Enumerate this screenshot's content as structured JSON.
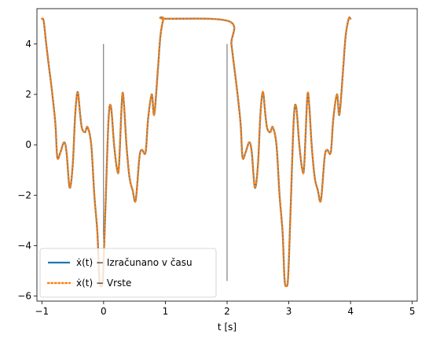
{
  "chart_data": {
    "type": "line",
    "title": "",
    "xlabel": "t [s]",
    "ylabel": "",
    "xlim": [
      -1.08,
      5.08
    ],
    "ylim": [
      -6.2,
      5.4
    ],
    "xticks": [
      -1,
      0,
      1,
      2,
      3,
      4,
      5
    ],
    "yticks": [
      -6,
      -4,
      -2,
      0,
      2,
      4
    ],
    "xtick_labels": [
      "−1",
      "0",
      "1",
      "2",
      "3",
      "4",
      "5"
    ],
    "ytick_labels": [
      "−6",
      "−4",
      "−2",
      "0",
      "2",
      "4"
    ],
    "grid": false,
    "legend_position": "lower-left",
    "vertical_markers": [
      {
        "x": 0,
        "y0": -5.4,
        "y1": 4.0
      },
      {
        "x": 2,
        "y0": -5.4,
        "y1": 4.0
      }
    ],
    "period": 3,
    "one_period": {
      "x": [
        -1.0,
        -0.97,
        -0.93,
        -0.88,
        -0.83,
        -0.78,
        -0.75,
        -0.7,
        -0.64,
        -0.6,
        -0.55,
        -0.5,
        -0.46,
        -0.42,
        -0.38,
        -0.35,
        -0.3,
        -0.26,
        -0.2,
        -0.15,
        -0.1,
        -0.07,
        -0.04,
        -0.01,
        0.03,
        0.08,
        0.12,
        0.17,
        0.22,
        0.25,
        0.3,
        0.33,
        0.37,
        0.42,
        0.47,
        0.52,
        0.58,
        0.62,
        0.68,
        0.72,
        0.78,
        0.82,
        0.88,
        0.92,
        0.97,
        1.0
      ],
      "y": [
        5.0,
        4.9,
        4.0,
        3.0,
        2.0,
        0.8,
        -0.5,
        -0.3,
        0.1,
        -0.3,
        -1.7,
        -0.8,
        1.2,
        2.1,
        1.2,
        0.65,
        0.5,
        0.7,
        0.0,
        -2.0,
        -3.5,
        -5.3,
        -5.6,
        -5.2,
        -2.5,
        1.0,
        1.5,
        0.0,
        -1.0,
        -0.8,
        1.9,
        1.6,
        0.0,
        -1.3,
        -1.8,
        -2.2,
        -0.5,
        -0.2,
        -0.3,
        1.0,
        2.0,
        1.2,
        3.0,
        4.3,
        5.0,
        5.0
      ]
    },
    "x_end": 5.0,
    "series": [
      {
        "name": "ẋ(t) − Izračunano v času",
        "color": "#1f77b4",
        "style": "solid"
      },
      {
        "name": "ẋ(t) − Vrste",
        "color": "#ff7f0e",
        "style": "dotted"
      }
    ]
  }
}
